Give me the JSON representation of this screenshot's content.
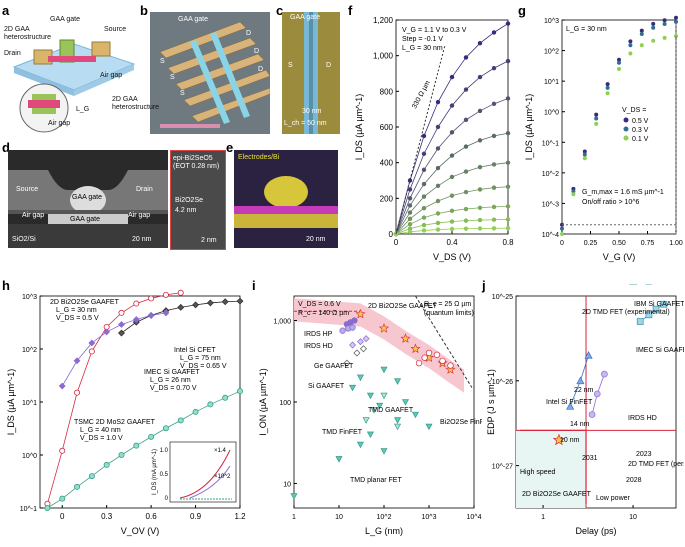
{
  "panel_letters": [
    "a",
    "b",
    "c",
    "d",
    "e",
    "f",
    "g",
    "h",
    "i",
    "j"
  ],
  "panel_a": {
    "labels": [
      "GAA gate",
      "2D GAA heterostructure",
      "Source",
      "Drain",
      "Air gap",
      "Air gap"
    ],
    "lg_mark": "L_G"
  },
  "panel_b": {
    "labels": [
      "GAA gate",
      "S",
      "D",
      "S",
      "D",
      "S",
      "D",
      "2D GAA heterostructure"
    ]
  },
  "panel_c": {
    "labels": [
      "GAA gate",
      "S",
      "D",
      "30 nm",
      "L_ch = 50 nm"
    ]
  },
  "panel_d": {
    "labels": [
      "Source",
      "GAA gate",
      "Drain",
      "Air gap",
      "GAA gate",
      "Air gap",
      "SiO2/Si",
      "20 nm"
    ],
    "zoom_labels": [
      "epi-Bi2SeO5",
      "(EOT 0.28 nm)",
      "Bi2O2Se",
      "4.2 nm",
      "2 nm"
    ]
  },
  "panel_e": {
    "labels": [
      "Electrodes/Bi",
      "20 nm"
    ]
  },
  "colors": {
    "curve_dark": "#3b2a7a",
    "curve_mid": "#2e6f8e",
    "curve_light": "#8fd14f",
    "red": "#d7263d",
    "purple": "#8a6bd1",
    "teal": "#5bc8b8",
    "pink_band": "#f7c7d0"
  },
  "chart_data": [
    {
      "panel": "f",
      "type": "line",
      "xlabel": "V_DS (V)",
      "ylabel": "I_DS (µA µm^-1)",
      "xlim": [
        0,
        0.8
      ],
      "ylim": [
        0,
        1200
      ],
      "xticks": [
        "0",
        "0.4",
        "0.8"
      ],
      "yticks": [
        "0",
        "200",
        "400",
        "600",
        "800",
        "1,000",
        "1,200"
      ],
      "annotations": [
        "V_G = 1.1 V to 0.3 V",
        "Step = -0.1 V",
        "L_G = 30 nm",
        "330 Ω µm"
      ],
      "x": [
        0,
        0.1,
        0.2,
        0.3,
        0.4,
        0.5,
        0.6,
        0.7,
        0.8
      ],
      "series": [
        {
          "values": [
            0,
            300,
            550,
            740,
            880,
            990,
            1070,
            1130,
            1180
          ]
        },
        {
          "values": [
            0,
            250,
            450,
            600,
            720,
            810,
            880,
            930,
            970
          ]
        },
        {
          "values": [
            0,
            200,
            360,
            480,
            570,
            640,
            690,
            730,
            760
          ]
        },
        {
          "values": [
            0,
            160,
            280,
            370,
            440,
            490,
            525,
            550,
            565
          ]
        },
        {
          "values": [
            0,
            120,
            210,
            270,
            320,
            350,
            375,
            390,
            400
          ]
        },
        {
          "values": [
            0,
            85,
            145,
            185,
            215,
            235,
            250,
            260,
            265
          ]
        },
        {
          "values": [
            0,
            55,
            92,
            115,
            130,
            140,
            147,
            152,
            155
          ]
        },
        {
          "values": [
            0,
            30,
            50,
            62,
            70,
            75,
            78,
            80,
            82
          ]
        },
        {
          "values": [
            0,
            12,
            20,
            25,
            28,
            30,
            31,
            32,
            33
          ]
        }
      ]
    },
    {
      "panel": "g",
      "type": "line",
      "xlabel": "V_G (V)",
      "ylabel": "I_DS (µA µm^-1)",
      "xlim": [
        0,
        1.0
      ],
      "ylim": [
        "10^-4",
        "10^3"
      ],
      "scale": "log",
      "xticks": [
        "0",
        "0.25",
        "0.50",
        "0.75",
        "1.00"
      ],
      "yticks": [
        "10^-4",
        "10^-3",
        "10^-2",
        "10^-1",
        "10^0",
        "10^1",
        "10^2",
        "10^3"
      ],
      "annotations": [
        "L_G = 30 nm",
        "G_m,max = 1.6 mS µm^-1",
        "On/off ratio > 10^6"
      ],
      "legend_title": "V_DS =",
      "x": [
        0,
        0.1,
        0.2,
        0.3,
        0.4,
        0.5,
        0.6,
        0.7,
        0.8,
        0.9,
        1.0
      ],
      "series": [
        {
          "name": "0.5 V",
          "values": [
            0.0002,
            0.003,
            0.05,
            0.8,
            8,
            50,
            200,
            450,
            750,
            980,
            1180
          ]
        },
        {
          "name": "0.3 V",
          "values": [
            0.00015,
            0.0025,
            0.04,
            0.6,
            6,
            40,
            150,
            350,
            560,
            740,
            880
          ]
        },
        {
          "name": "0.1 V",
          "values": [
            0.0001,
            0.002,
            0.03,
            0.4,
            4,
            25,
            80,
            150,
            210,
            260,
            300
          ]
        }
      ]
    },
    {
      "panel": "h",
      "type": "line",
      "xlabel": "V_OV (V)",
      "ylabel": "I_DS (µA µm^-1)",
      "xlim": [
        -0.15,
        1.2
      ],
      "ylim": [
        "10^-1",
        "10^3"
      ],
      "scale": "log",
      "xticks": [
        "0",
        "0.3",
        "0.6",
        "0.9",
        "1.2"
      ],
      "yticks": [
        "10^-1",
        "10^0",
        "10^1",
        "10^2",
        "10^3"
      ],
      "legend": [
        {
          "name": "2D Bi2O2Se GAAFET",
          "params": [
            "L_G = 30 nm",
            "V_DS = 0.5 V"
          ]
        },
        {
          "name": "Intel Si CFET",
          "params": [
            "L_G = 75 nm",
            "V_DS = 0.65 V"
          ]
        },
        {
          "name": "IMEC Si GAAFET",
          "params": [
            "L_G = 26 nm",
            "V_DS = 0.70 V"
          ]
        },
        {
          "name": "TSMC 2D MoS2 GAAFET",
          "params": [
            "L_G = 40 nm",
            "V_DS = 1.0 V"
          ]
        }
      ],
      "inset": {
        "ylabel": "I_DS (mA µm^-1)",
        "yticks": [
          "0",
          "0.5",
          "1.0"
        ],
        "annotations": [
          "×1.4",
          "×10^2"
        ]
      },
      "series": [
        {
          "name": "2D Bi2O2Se GAAFET",
          "x": [
            -0.1,
            0.0,
            0.1,
            0.2,
            0.3,
            0.4,
            0.5,
            0.6,
            0.7,
            0.8
          ],
          "values": [
            0.12,
            1.2,
            15,
            90,
            260,
            480,
            720,
            900,
            1050,
            1150
          ]
        },
        {
          "name": "Intel Si CFET",
          "x": [
            0.4,
            0.5,
            0.6,
            0.7,
            0.8,
            0.9,
            1.0,
            1.1,
            1.2
          ],
          "values": [
            200,
            320,
            430,
            530,
            610,
            680,
            740,
            780,
            800
          ]
        },
        {
          "name": "IMEC Si GAAFET",
          "x": [
            0.0,
            0.1,
            0.2,
            0.3,
            0.4,
            0.5,
            0.6,
            0.7
          ],
          "values": [
            20,
            60,
            130,
            210,
            290,
            360,
            430,
            480
          ]
        },
        {
          "name": "TSMC 2D MoS2 GAAFET",
          "x": [
            -0.1,
            0.0,
            0.1,
            0.2,
            0.3,
            0.4,
            0.5,
            0.6,
            0.7,
            0.8,
            0.9,
            1.0,
            1.1,
            1.2
          ],
          "values": [
            0.1,
            0.15,
            0.25,
            0.4,
            0.65,
            1.0,
            1.5,
            2.2,
            3.2,
            4.5,
            6.5,
            9,
            12,
            16
          ]
        }
      ]
    },
    {
      "panel": "i",
      "type": "scatter",
      "xlabel": "L_G (nm)",
      "ylabel": "I_ON (µA µm^-1)",
      "scale": "log-log",
      "xlim": [
        1,
        10000
      ],
      "ylim": [
        5,
        2000
      ],
      "xticks": [
        "1",
        "10",
        "10^2",
        "10^3",
        "10^4"
      ],
      "yticks": [
        "10",
        "100",
        "1,000"
      ],
      "annotations": [
        "V_DS = 0.6 V",
        "R_c = 140 Ω µm",
        "2D Bi2O2Se GAAFET",
        "R_c = 25 Ω µm",
        "(quantum limits)",
        "IRDS HP",
        "IRDS HD",
        "Ge GAAFET",
        "Si GAAFET",
        "TMD GAAFET",
        "TMD FinFET",
        "TMD planar FET",
        "Bi2O2Se FinFET"
      ],
      "series": [
        {
          "name": "2D Bi2O2Se GAAFET",
          "x": [
            30,
            100,
            300,
            500,
            1000,
            2000,
            3000
          ],
          "values": [
            1200,
            800,
            600,
            450,
            350,
            300,
            250
          ]
        },
        {
          "name": "IRDS HP",
          "x": [
            15,
            18,
            22
          ],
          "values": [
            900,
            950,
            1000
          ]
        },
        {
          "name": "IRDS HD",
          "x": [
            12,
            16,
            20
          ],
          "values": [
            750,
            800,
            820
          ]
        },
        {
          "name": "Ge GAAFET",
          "x": [
            20,
            30,
            40
          ],
          "values": [
            500,
            550,
            600
          ]
        },
        {
          "name": "Si GAAFET",
          "x": [
            15,
            25,
            35
          ],
          "values": [
            300,
            400,
            450
          ]
        },
        {
          "name": "Bi2O2Se FinFET",
          "x": [
            600,
            800,
            1000,
            1500,
            2000,
            3000
          ],
          "values": [
            300,
            350,
            400,
            380,
            320,
            280
          ]
        },
        {
          "name": "TMD GAAFET",
          "x": [
            20,
            30,
            50,
            80,
            100,
            200,
            300
          ],
          "values": [
            150,
            200,
            120,
            90,
            250,
            180,
            100
          ]
        },
        {
          "name": "TMD FinFET",
          "x": [
            40,
            60,
            100,
            200
          ],
          "values": [
            60,
            80,
            120,
            50
          ]
        },
        {
          "name": "TMD planar FET",
          "x": [
            1,
            10,
            30,
            50,
            100,
            200,
            500,
            1000
          ],
          "values": [
            7,
            20,
            30,
            40,
            25,
            60,
            70,
            50
          ]
        }
      ]
    },
    {
      "panel": "j",
      "type": "scatter",
      "xlabel": "Delay (ps)",
      "ylabel": "EDP (J s µm^-1)",
      "scale": "log-log",
      "xlim": [
        0.5,
        30
      ],
      "ylim": [
        "10^-27.5",
        "10^-25"
      ],
      "xticks": [
        "1",
        "10"
      ],
      "yticks": [
        "10^-27",
        "10^-26",
        "10^-25"
      ],
      "annotations": [
        "IBM Si GAAFET",
        "2D TMD FET (experimental)",
        "IMEC Si GAAFET",
        "22 nm",
        "14 nm",
        "10 nm",
        "Intel Si FinFET",
        "2031",
        "2023",
        "IRDS HD",
        "2028",
        "2D TMD FET (perspective)",
        "High speed",
        "Low power",
        "2D Bi2O2Se GAAFET"
      ],
      "series": [
        {
          "name": "Intel Si FinFET",
          "x": [
            2.0,
            2.6,
            3.2
          ],
          "values": [
            5e-27,
            1e-26,
            2e-26
          ]
        },
        {
          "name": "IRDS HD",
          "x": [
            3.5,
            4.0,
            4.8
          ],
          "values": [
            4e-27,
            7e-27,
            1.2e-26
          ]
        },
        {
          "name": "IMEC Si GAAFET",
          "x": [
            12,
            15,
            18,
            22
          ],
          "values": [
            5e-26,
            6e-26,
            7e-26,
            8e-26
          ]
        },
        {
          "name": "IBM Si GAAFET",
          "x": [
            15,
            20,
            25
          ],
          "values": [
            1.5e-25,
            1.7e-25,
            2e-25
          ]
        },
        {
          "name": "2D TMD FET (experimental)",
          "x": [
            10,
            20
          ],
          "values": [
            1.5e-25,
            2e-25
          ]
        },
        {
          "name": "2D Bi2O2Se GAAFET",
          "x": [
            1.5
          ],
          "values": [
            2e-27
          ]
        }
      ]
    }
  ]
}
